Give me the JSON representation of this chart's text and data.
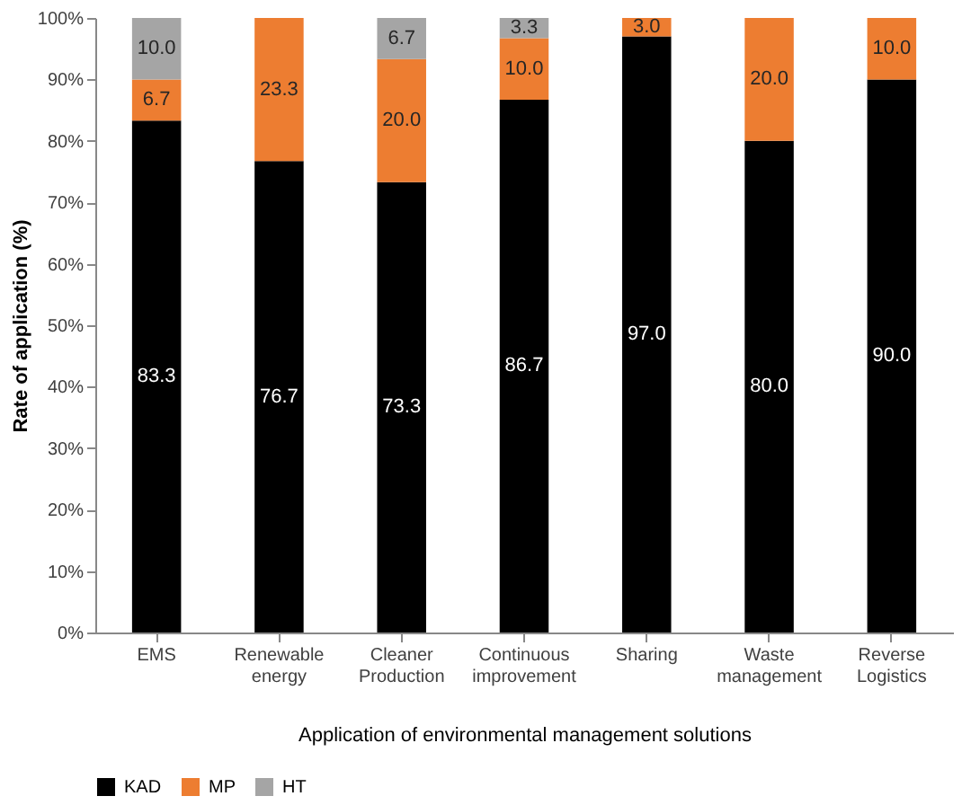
{
  "chart_data": {
    "type": "bar",
    "stacked": true,
    "xlabel": "Application of environmental management solutions",
    "ylabel": "Rate of application (%)",
    "categories": [
      "EMS",
      "Renewable energy",
      "Cleaner Production",
      "Continuous improvement",
      "Sharing",
      "Waste management",
      "Reverse Logistics"
    ],
    "series": [
      {
        "name": "KAD",
        "color": "#000000",
        "values": [
          83.3,
          76.7,
          73.3,
          86.7,
          97.0,
          80.0,
          90.0
        ],
        "value_labels": [
          "83.3",
          "76.7",
          "73.3",
          "86.7",
          "97.0",
          "80.0",
          "90.0"
        ]
      },
      {
        "name": "MP",
        "color": "#ed7d31",
        "values": [
          6.7,
          23.3,
          20.0,
          10.0,
          3.0,
          20.0,
          10.0
        ],
        "value_labels": [
          "6.7",
          "23.3",
          "20.0",
          "10.0",
          "3.0",
          "20.0",
          "10.0"
        ]
      },
      {
        "name": "HT",
        "color": "#a5a5a5",
        "values": [
          10.0,
          null,
          6.7,
          3.3,
          null,
          null,
          null
        ],
        "value_labels": [
          "10.0",
          null,
          "6.7",
          "3.3",
          null,
          null,
          null
        ]
      }
    ],
    "ylim": [
      0,
      100
    ],
    "yticks": [
      {
        "value": 0,
        "label": "0%"
      },
      {
        "value": 10,
        "label": "10%"
      },
      {
        "value": 20,
        "label": "20%"
      },
      {
        "value": 30,
        "label": "30%"
      },
      {
        "value": 40,
        "label": "40%"
      },
      {
        "value": 50,
        "label": "50%"
      },
      {
        "value": 60,
        "label": "60%"
      },
      {
        "value": 70,
        "label": "70%"
      },
      {
        "value": 80,
        "label": "80%"
      },
      {
        "value": 90,
        "label": "90%"
      },
      {
        "value": 100,
        "label": "100%"
      }
    ],
    "grid": false,
    "legend": "bottom"
  }
}
